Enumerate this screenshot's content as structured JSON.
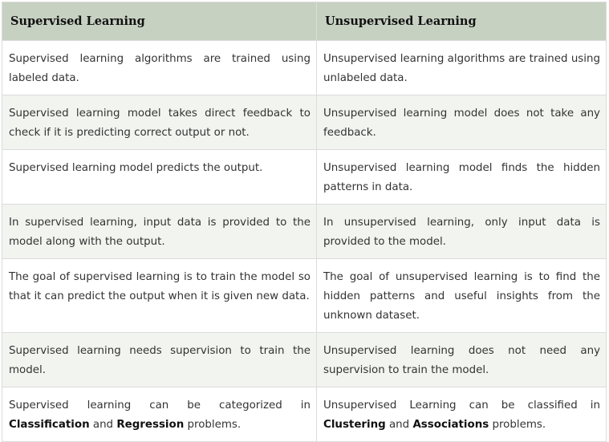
{
  "headers": {
    "supervised": "Supervised Learning",
    "unsupervised": "Unsupervised Learning"
  },
  "rows": [
    {
      "supervised": "Supervised learning algorithms are trained using labeled data.",
      "unsupervised": "Unsupervised learning algorithms are trained using unlabeled data."
    },
    {
      "supervised": "Supervised learning model takes direct feedback to check if it is predicting correct output or not.",
      "unsupervised": "Unsupervised learning model does not take any feedback."
    },
    {
      "supervised": "Supervised learning model predicts the output.",
      "unsupervised": "Unsupervised learning model finds the hidden patterns in data."
    },
    {
      "supervised": "In supervised learning, input data is provided to the model along with the output.",
      "unsupervised": "In unsupervised learning, only input data is provided to the model."
    },
    {
      "supervised": "The goal of supervised learning is to train the model so that it can predict the output when it is given new data.",
      "unsupervised": "The goal of unsupervised learning is to find the hidden patterns and useful insights from the unknown dataset."
    },
    {
      "supervised": "Supervised learning needs supervision to train the model.",
      "unsupervised": "Unsupervised learning does not need any supervision to train the model."
    },
    {
      "supervised": {
        "prefix": "Supervised learning can be categorized in ",
        "term1": "Classification",
        "middle": " and ",
        "term2": "Regression",
        "suffix": " problems."
      },
      "unsupervised": {
        "prefix": "Unsupervised Learning can be classified in ",
        "term1": "Clustering",
        "middle": " and ",
        "term2": "Associations",
        "suffix": " problems."
      }
    }
  ],
  "colors": {
    "header_bg": "#c7d1c2",
    "stripe_bg": "#f2f4ef",
    "border": "#dcdcdc",
    "text": "#333333"
  }
}
